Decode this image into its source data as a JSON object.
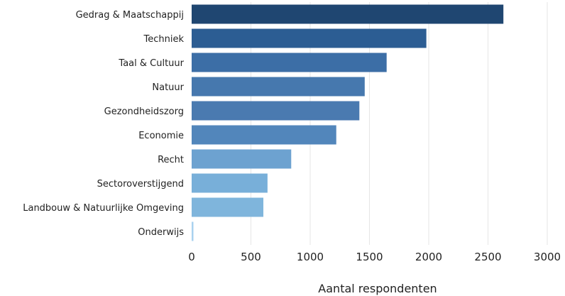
{
  "chart_data": {
    "type": "bar",
    "orientation": "horizontal",
    "categories": [
      "Gedrag & Maatschappij",
      "Techniek",
      "Taal & Cultuur",
      "Natuur",
      "Gezondheidszorg",
      "Economie",
      "Recht",
      "Sectoroverstijgend",
      "Landbouw & Natuurlijke Omgeving",
      "Onderwijs"
    ],
    "values": [
      2630,
      1980,
      1645,
      1460,
      1415,
      1220,
      840,
      640,
      605,
      15
    ],
    "colors": [
      "#1f4671",
      "#2c5d93",
      "#3c6ea6",
      "#4678ae",
      "#4a7ab0",
      "#5286bb",
      "#6da2d0",
      "#78afd9",
      "#7fb5dc",
      "#a9d2ef"
    ],
    "xlabel": "Aantal respondenten",
    "ylabel": "",
    "xlim": [
      0,
      3000
    ],
    "xticks": [
      0,
      500,
      1000,
      1500,
      2000,
      2500,
      3000
    ],
    "grid": "vertical"
  }
}
